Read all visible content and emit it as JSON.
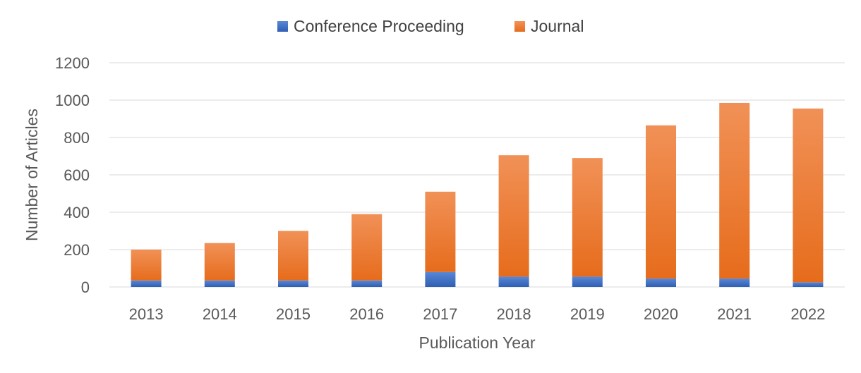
{
  "chart_data": {
    "type": "bar",
    "stacked": true,
    "title": "",
    "xlabel": "Publication Year",
    "ylabel": "Number of Articles",
    "ylim": [
      0,
      1200
    ],
    "yticks": [
      "0",
      "200",
      "400",
      "600",
      "800",
      "1000",
      "1200"
    ],
    "categories": [
      "2013",
      "2014",
      "2015",
      "2016",
      "2017",
      "2018",
      "2019",
      "2020",
      "2021",
      "2022"
    ],
    "series": [
      {
        "name": "Conference Proceeding",
        "color": "#4472c4",
        "values": [
          35,
          35,
          35,
          35,
          80,
          55,
          55,
          45,
          45,
          25
        ]
      },
      {
        "name": "Journal",
        "color": "#ed7d31",
        "values": [
          165,
          200,
          265,
          355,
          430,
          650,
          635,
          820,
          940,
          930
        ]
      }
    ],
    "grid": true,
    "legend_position": "top"
  }
}
